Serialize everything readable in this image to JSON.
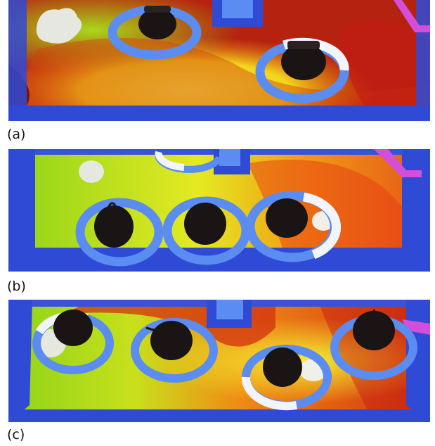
{
  "figure": {
    "panels": [
      {
        "label": "(a)"
      },
      {
        "label": "(b)"
      },
      {
        "label": "(c)"
      }
    ]
  },
  "colors": {
    "table_border": "#2f4bd6",
    "ring_blue": "#5a8cf2",
    "ring_white": "#f2f4ff",
    "heat_red": "#c41a12",
    "heat_orange": "#f07a10",
    "heat_yellow": "#f4e21e",
    "heat_green": "#8ccf16",
    "magenta": "#d24fd8",
    "robot": "#1a1414"
  }
}
